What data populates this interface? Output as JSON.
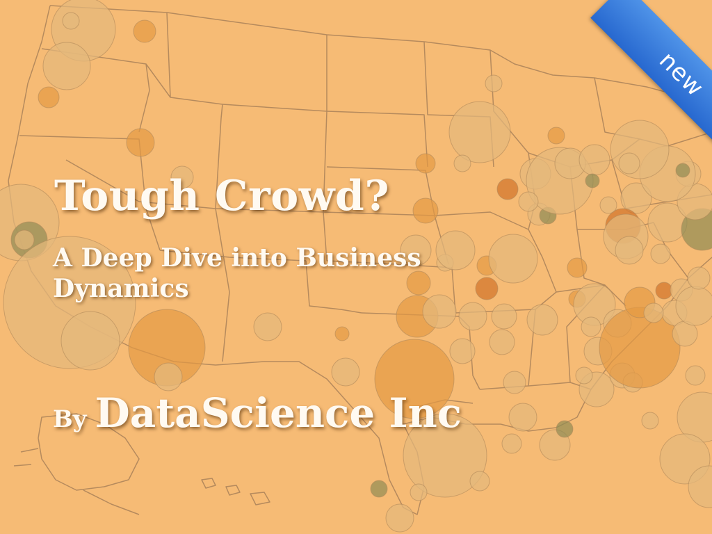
{
  "slide": {
    "title": "Tough Crowd?",
    "subtitle_line1": "A Deep Dive into Business",
    "subtitle_line2": "Dynamics",
    "byline_prefix": "By",
    "company": "DataScience Inc",
    "badge": "new"
  },
  "colors": {
    "background": "#f6bb75",
    "map_lines": "#a07a55",
    "bubble_light": "#e5b97c",
    "bubble_mid": "#e49a42",
    "bubble_dark": "#8e8a52",
    "bubble_rust": "#d07027",
    "ribbon": "#3a82e0",
    "text": "#fffaf2"
  },
  "map": {
    "subject": "United States map with circle markers",
    "marker_shape": "circle",
    "icon": "us-map-icon"
  }
}
